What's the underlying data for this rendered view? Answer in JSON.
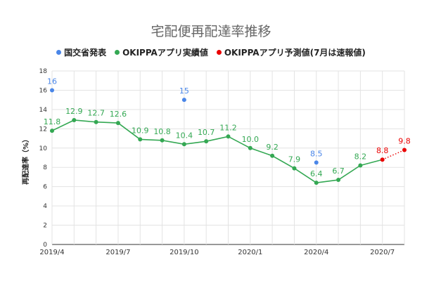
{
  "chart_data": {
    "type": "line",
    "title": "宅配便再配達率推移",
    "ylabel": "再配達率（%）",
    "xlabel": "",
    "ylim": [
      0,
      18
    ],
    "yticks": [
      0,
      2,
      4,
      6,
      8,
      10,
      12,
      14,
      16,
      18
    ],
    "grid": true,
    "legend_position": "top-center",
    "x_tick_labels": [
      "2019/4",
      "2019/7",
      "2019/10",
      "2020/1",
      "2020/4",
      "2020/7"
    ],
    "categories": [
      "2019/4",
      "2019/5",
      "2019/6",
      "2019/7",
      "2019/8",
      "2019/9",
      "2019/10",
      "2019/11",
      "2019/12",
      "2020/1",
      "2020/2",
      "2020/3",
      "2020/4",
      "2020/5",
      "2020/6",
      "2020/7",
      "2020/8"
    ],
    "series": [
      {
        "name": "国交省発表",
        "color": "#4a86e8",
        "style": "points",
        "points": [
          {
            "x": "2019/4",
            "y": 16,
            "label": "16"
          },
          {
            "x": "2019/10",
            "y": 15,
            "label": "15"
          },
          {
            "x": "2020/4",
            "y": 8.5,
            "label": "8.5"
          }
        ]
      },
      {
        "name": "OKIPPAアプリ実績値",
        "color": "#34a853",
        "style": "line",
        "points": [
          {
            "x": "2019/4",
            "y": 11.8,
            "label": "11.8"
          },
          {
            "x": "2019/5",
            "y": 12.9,
            "label": "12.9"
          },
          {
            "x": "2019/6",
            "y": 12.7,
            "label": "12.7"
          },
          {
            "x": "2019/7",
            "y": 12.6,
            "label": "12.6"
          },
          {
            "x": "2019/8",
            "y": 10.9,
            "label": "10.9"
          },
          {
            "x": "2019/9",
            "y": 10.8,
            "label": "10.8"
          },
          {
            "x": "2019/10",
            "y": 10.4,
            "label": "10.4"
          },
          {
            "x": "2019/11",
            "y": 10.7,
            "label": "10.7"
          },
          {
            "x": "2019/12",
            "y": 11.2,
            "label": "11.2"
          },
          {
            "x": "2020/1",
            "y": 10.0,
            "label": "10.0"
          },
          {
            "x": "2020/2",
            "y": 9.2,
            "label": "9.2"
          },
          {
            "x": "2020/3",
            "y": 7.9,
            "label": "7.9"
          },
          {
            "x": "2020/4",
            "y": 6.4,
            "label": "6.4"
          },
          {
            "x": "2020/5",
            "y": 6.7,
            "label": "6.7"
          },
          {
            "x": "2020/6",
            "y": 8.2,
            "label": "8.2"
          }
        ]
      },
      {
        "name": "OKIPPAアプリ予測値(7月は速報値)",
        "color": "#ea0000",
        "style": "dotted",
        "points": [
          {
            "x": "2020/7",
            "y": 8.8,
            "label": "8.8"
          },
          {
            "x": "2020/8",
            "y": 9.8,
            "label": "9.8"
          }
        ]
      }
    ]
  }
}
